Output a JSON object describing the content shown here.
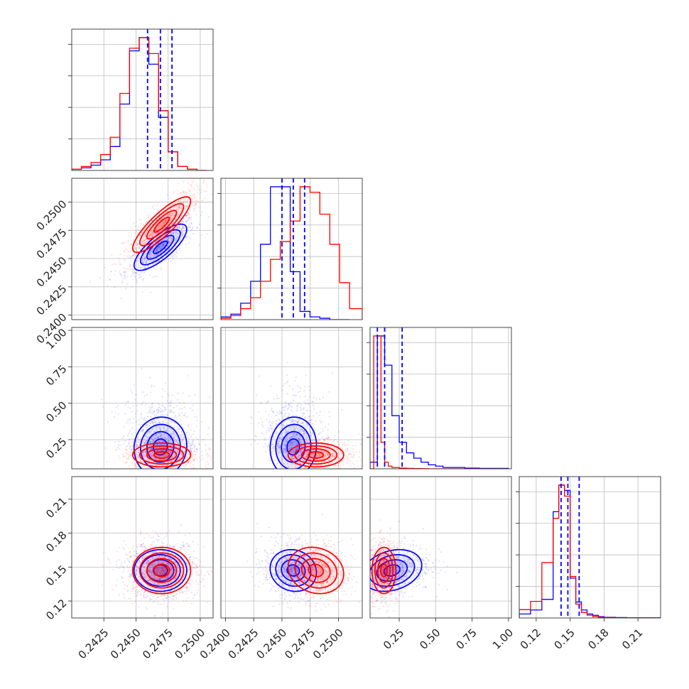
{
  "chart_data": {
    "type": "corner",
    "grid": true,
    "colors": {
      "blue": "#0000ff",
      "red": "#ff0000"
    },
    "parameters": [
      {
        "range": [
          0.24,
          0.251
        ],
        "ticks": [
          "0.2425",
          "0.2450",
          "0.2475",
          "0.2500"
        ]
      },
      {
        "range": [
          0.2396,
          0.2521
        ],
        "ticks": [
          "0.2400",
          "0.2425",
          "0.2450",
          "0.2475",
          "0.2500"
        ]
      },
      {
        "range": [
          0.05,
          1.02
        ],
        "ticks": [
          "0.25",
          "0.50",
          "0.75",
          "1.00"
        ]
      },
      {
        "range": [
          0.105,
          0.23
        ],
        "ticks": [
          "0.12",
          "0.15",
          "0.18",
          "0.21"
        ]
      }
    ],
    "series": [
      {
        "color": "#0000ff",
        "quantiles": [
          [
            0.2459,
            0.2469,
            0.2478
          ],
          [
            0.245,
            0.246,
            0.247
          ],
          [
            0.1,
            0.15,
            0.27
          ],
          [
            0.142,
            0.148,
            0.158
          ]
        ],
        "centers": [
          0.2469,
          0.246,
          0.2,
          0.147
        ],
        "sigmas": [
          0.001,
          0.001,
          0.1,
          0.009
        ],
        "correlations": {
          "1-0": 0.78,
          "2-0": 0.05,
          "2-1": 0.05,
          "3-0": 0.0,
          "3-1": -0.1,
          "3-2": 0.25
        },
        "hist_edges": [
          [
            0.24,
            0.24075,
            0.2415,
            0.24225,
            0.243,
            0.24375,
            0.2445,
            0.24525,
            0.246,
            0.24675,
            0.2475,
            0.24825,
            0.249,
            0.24975,
            0.2505
          ],
          [
            0.2396,
            0.24048,
            0.24135,
            0.24223,
            0.2431,
            0.24398,
            0.24485,
            0.24573,
            0.2466,
            0.24748,
            0.24835,
            0.24923,
            0.2501,
            0.25098
          ],
          [
            0.05,
            0.1,
            0.15,
            0.2,
            0.25,
            0.3,
            0.35,
            0.4,
            0.45,
            0.5,
            0.55,
            0.6,
            0.65,
            0.7,
            0.8,
            1.0
          ],
          [
            0.105,
            0.115,
            0.125,
            0.135,
            0.14,
            0.145,
            0.15,
            0.155,
            0.16,
            0.165,
            0.17,
            0.175,
            0.18,
            0.19,
            0.2,
            0.23
          ]
        ],
        "hist_counts": [
          [
            1,
            2,
            4,
            8,
            18,
            50,
            90,
            100,
            80,
            40,
            14,
            3,
            1,
            0
          ],
          [
            2,
            4,
            12,
            28,
            55,
            97,
            97,
            35,
            6,
            2,
            1,
            0,
            0
          ],
          [
            5,
            100,
            78,
            40,
            20,
            12,
            8,
            5,
            3,
            2,
            1,
            1,
            1,
            0.5,
            0.3
          ],
          [
            3,
            6,
            14,
            80,
            100,
            96,
            30,
            12,
            6,
            3,
            2,
            1,
            0.5,
            0.3,
            0.1
          ]
        ]
      },
      {
        "color": "#ff0000",
        "centers": [
          0.247,
          0.248,
          0.145,
          0.147
        ],
        "sigmas": [
          0.0011,
          0.0012,
          0.04,
          0.01
        ],
        "correlations": {
          "1-0": 0.85,
          "2-0": 0.0,
          "2-1": 0.0,
          "3-0": 0.0,
          "3-1": -0.15,
          "3-2": 0.0
        },
        "hist_edges": [
          [
            0.24,
            0.24075,
            0.2415,
            0.24225,
            0.243,
            0.24375,
            0.2445,
            0.24525,
            0.246,
            0.24675,
            0.2475,
            0.24825,
            0.249,
            0.24975,
            0.2505
          ],
          [
            0.2396,
            0.24048,
            0.24135,
            0.24223,
            0.2431,
            0.24398,
            0.24485,
            0.24573,
            0.2466,
            0.24748,
            0.24835,
            0.24923,
            0.2501,
            0.25098,
            0.2521
          ],
          [
            0.05,
            0.075,
            0.1,
            0.125,
            0.15,
            0.175,
            0.2,
            0.25,
            0.3,
            0.35,
            0.4,
            0.45,
            0.5,
            0.6,
            1.0
          ],
          [
            0.105,
            0.115,
            0.125,
            0.135,
            0.14,
            0.145,
            0.15,
            0.155,
            0.16,
            0.165,
            0.17,
            0.175,
            0.18,
            0.19,
            0.2,
            0.23
          ]
        ],
        "hist_counts": [
          [
            1,
            3,
            6,
            12,
            25,
            58,
            92,
            100,
            88,
            45,
            14,
            3,
            1,
            0
          ],
          [
            1,
            3,
            8,
            16,
            28,
            44,
            57,
            72,
            97,
            93,
            77,
            55,
            27,
            8
          ],
          [
            0,
            100,
            100,
            20,
            5,
            2,
            1,
            0.5,
            0.3,
            0.2,
            0.1,
            0,
            0,
            0
          ],
          [
            6,
            12,
            40,
            72,
            96,
            88,
            30,
            10,
            4,
            2,
            1,
            0.5,
            0.3,
            0.1,
            0
          ]
        ]
      }
    ]
  }
}
